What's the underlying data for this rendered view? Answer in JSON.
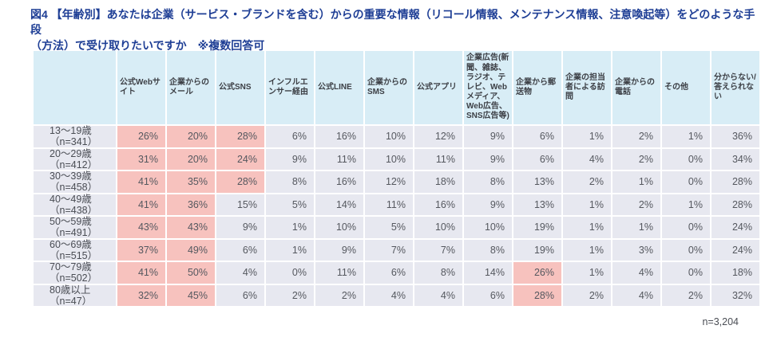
{
  "title": {
    "line1": "図4 【年齢別】あなたは企業（サービス・ブランドを含む）からの重要な情報（リコール情報、メンテナンス情報、注意喚起等）をどのような手段",
    "line2": "（方法）で受け取りたいですか　※複数回答可"
  },
  "footer": {
    "sample_size_label": "n=3,204"
  },
  "colors": {
    "title_text": "#1e3e95",
    "header_bg": "#d8edf6",
    "row_bg": "#e7e8f0",
    "highlight_bg": "#f7c2be",
    "cell_text": "#55585f"
  },
  "chart_data": {
    "type": "table",
    "unit": "%",
    "columns": [
      "公式Webサイト",
      "企業からのメール",
      "公式SNS",
      "インフルエンサー経由",
      "公式LINE",
      "企業からのSMS",
      "公式アプリ",
      "企業広告(新聞、雑誌、ラジオ、テレビ、Webメディア、Web広告、SNS広告等)",
      "企業から郵送物",
      "企業の担当者による訪問",
      "企業からの電話",
      "その他",
      "分からない/答えられない"
    ],
    "rows": [
      {
        "age": "13〜19歳",
        "n": "（n=341）",
        "values": [
          26,
          20,
          28,
          6,
          16,
          10,
          12,
          9,
          6,
          1,
          2,
          1,
          36
        ],
        "highlighted_columns": [
          0,
          1,
          2
        ]
      },
      {
        "age": "20〜29歳",
        "n": "（n=412）",
        "values": [
          31,
          20,
          24,
          9,
          11,
          10,
          11,
          9,
          6,
          4,
          2,
          0,
          34
        ],
        "highlighted_columns": [
          0,
          1,
          2
        ]
      },
      {
        "age": "30〜39歳",
        "n": "（n=458）",
        "values": [
          41,
          35,
          28,
          8,
          16,
          12,
          18,
          8,
          13,
          2,
          1,
          0,
          28
        ],
        "highlighted_columns": [
          0,
          1,
          2
        ]
      },
      {
        "age": "40〜49歳",
        "n": "（n=438）",
        "values": [
          41,
          36,
          15,
          5,
          14,
          11,
          16,
          9,
          13,
          1,
          2,
          1,
          28
        ],
        "highlighted_columns": [
          0,
          1
        ]
      },
      {
        "age": "50〜59歳",
        "n": "（n=491）",
        "values": [
          43,
          43,
          9,
          1,
          10,
          5,
          10,
          10,
          19,
          1,
          1,
          0,
          24
        ],
        "highlighted_columns": [
          0,
          1
        ]
      },
      {
        "age": "60〜69歳",
        "n": "（n=515）",
        "values": [
          37,
          49,
          6,
          1,
          9,
          7,
          7,
          8,
          19,
          1,
          3,
          0,
          24
        ],
        "highlighted_columns": [
          0,
          1
        ]
      },
      {
        "age": "70〜79歳",
        "n": "（n=502）",
        "values": [
          41,
          50,
          4,
          0,
          11,
          6,
          8,
          14,
          26,
          1,
          4,
          0,
          18
        ],
        "highlighted_columns": [
          0,
          1,
          8
        ]
      },
      {
        "age": "80歳以上",
        "n": "（n=47）",
        "values": [
          32,
          45,
          6,
          2,
          2,
          4,
          4,
          6,
          28,
          2,
          4,
          2,
          32
        ],
        "highlighted_columns": [
          0,
          1,
          8
        ]
      }
    ]
  }
}
